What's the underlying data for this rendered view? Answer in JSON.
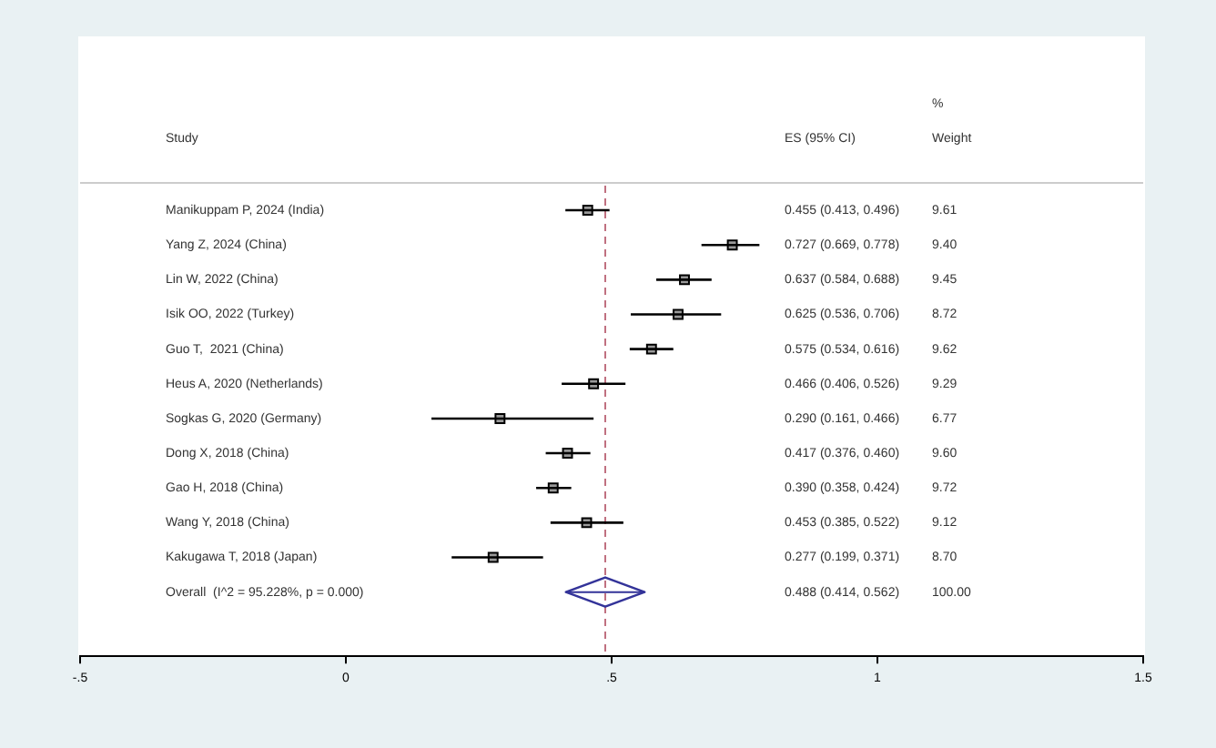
{
  "chart_data": {
    "type": "scatter",
    "orientation": "horizontal",
    "categories": [
      "Manikuppam P, 2024 (India)",
      "Yang Z, 2024 (China)",
      "Lin W, 2022 (China)",
      "Isik OO, 2022 (Turkey)",
      "Guo T,  2021 (China)",
      "Heus A, 2020 (Netherlands)",
      "Sogkas G, 2020 (Germany)",
      "Dong X, 2018 (China)",
      "Gao H, 2018 (China)",
      "Wang Y, 2018 (China)",
      "Kakugawa T, 2018 (Japan)",
      "Overall  (I^2 = 95.228%, p = 0.000)"
    ],
    "series": [
      {
        "color": "#000000",
        "marker": "square",
        "values": [
          0.455,
          0.727,
          0.637,
          0.625,
          0.575,
          0.466,
          0.29,
          0.417,
          0.39,
          0.453,
          0.277,
          null
        ],
        "errors": [
          [
            0.413,
            0.496
          ],
          [
            0.669,
            0.778
          ],
          [
            0.584,
            0.688
          ],
          [
            0.536,
            0.706
          ],
          [
            0.534,
            0.616
          ],
          [
            0.406,
            0.526
          ],
          [
            0.161,
            0.466
          ],
          [
            0.376,
            0.46
          ],
          [
            0.358,
            0.424
          ],
          [
            0.385,
            0.522
          ],
          [
            0.199,
            0.371
          ],
          null
        ]
      },
      {
        "color": "#333399",
        "marker": "diamond",
        "values": [
          null,
          null,
          null,
          null,
          null,
          null,
          null,
          null,
          null,
          null,
          null,
          0.488
        ],
        "errors": [
          null,
          null,
          null,
          null,
          null,
          null,
          null,
          null,
          null,
          null,
          null,
          [
            0.414,
            0.562
          ]
        ]
      }
    ],
    "xlim": [
      -0.5,
      1.5
    ],
    "xticks": [
      {
        "value": -0.5,
        "label": "-.5"
      },
      0,
      {
        "value": 0.5,
        "label": ".5"
      },
      1,
      1.5
    ],
    "grid": false,
    "legend": false,
    "ref_lines": [
      {
        "axis": "x",
        "value": 0.488,
        "color": "#c07080",
        "line_style": "dashed"
      }
    ],
    "annotations": [
      "Study",
      "ES (95% CI)",
      "%",
      "Weight",
      "0.455 (0.413, 0.496)",
      "9.61",
      "0.727 (0.669, 0.778)",
      "9.40",
      "0.637 (0.584, 0.688)",
      "9.45",
      "0.625 (0.536, 0.706)",
      "8.72",
      "0.575 (0.534, 0.616)",
      "9.62",
      "0.466 (0.406, 0.526)",
      "9.29",
      "0.290 (0.161, 0.466)",
      "6.77",
      "0.417 (0.376, 0.460)",
      "9.60",
      "0.390 (0.358, 0.424)",
      "9.72",
      "0.453 (0.385, 0.522)",
      "9.12",
      "0.277 (0.199, 0.371)",
      "8.70",
      "0.488 (0.414, 0.562)",
      "100.00"
    ]
  }
}
